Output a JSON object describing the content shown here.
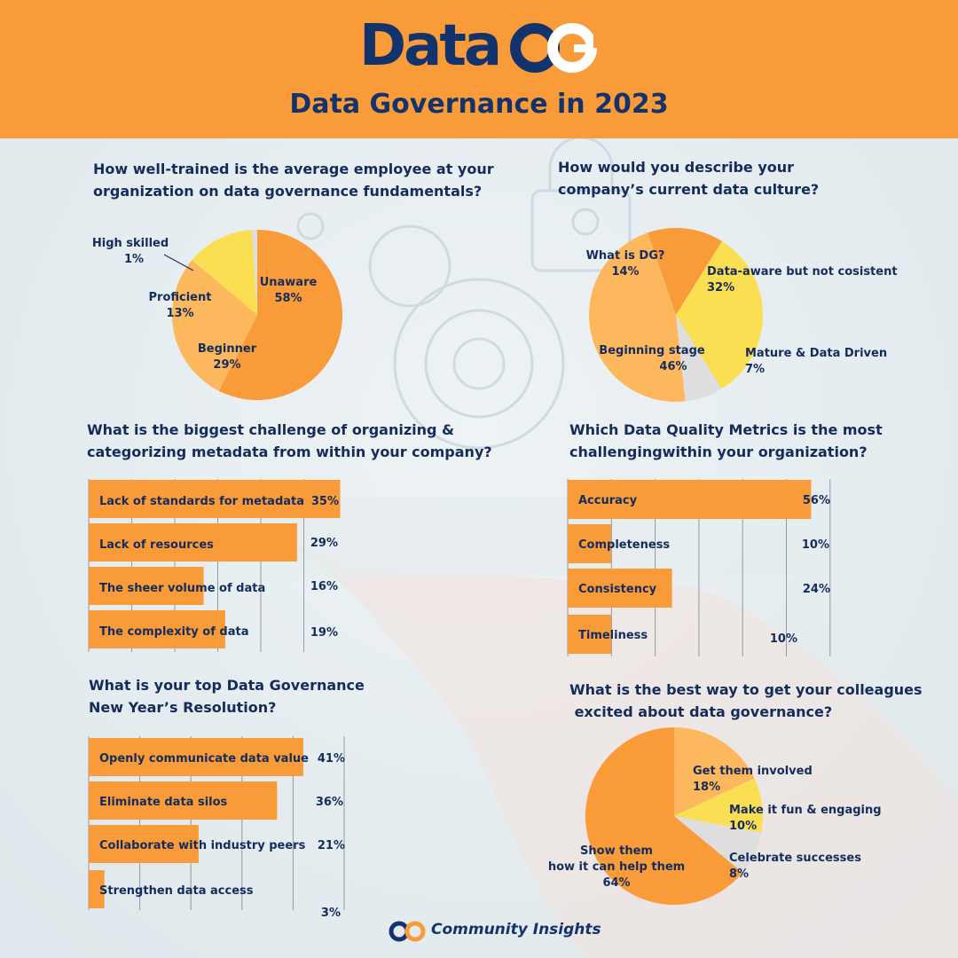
{
  "brand": {
    "logo_text": "Data",
    "logo_mark": "QG",
    "title": "Data Governance in 2023",
    "footer_text": "Community Insights",
    "colors": {
      "orange": "#fa9b3a",
      "light_orange": "#fdb75c",
      "yellow": "#fbdf52",
      "grey": "#dedede",
      "navy": "#12336b"
    }
  },
  "questions": {
    "q1": [
      "How well-trained is the average employee at your",
      "organization on data governance fundamentals?"
    ],
    "q2": [
      "How would you describe your",
      "company’s current data culture?"
    ],
    "q3": [
      "What is the biggest challenge of organizing &",
      "categorizing metadata from within your company?"
    ],
    "q4": [
      "Which Data Quality Metrics is the most",
      "challengingwithin your organization?"
    ],
    "q5": [
      "What is your top Data Governance",
      "New Year’s Resolution?"
    ],
    "q6": [
      "What is the best way to get your colleagues",
      " excited about data governance?"
    ]
  },
  "chart_data": [
    {
      "type": "pie",
      "labels": [
        "Unaware",
        "Beginner",
        "Proficient",
        "High skilled"
      ],
      "values": [
        58,
        29,
        13,
        1
      ],
      "display": [
        "58%",
        "29%",
        "13%",
        "1%"
      ],
      "colors": [
        "#fa9b3a",
        "#fdb75c",
        "#fbdf52",
        "#dedede"
      ]
    },
    {
      "type": "pie",
      "labels": [
        "Data-aware but not cosistent",
        "Mature & Data Driven",
        "Beginning stage",
        "What is DG?"
      ],
      "values": [
        32,
        7,
        46,
        14
      ],
      "display": [
        "32%",
        "7%",
        "46%",
        "14%"
      ],
      "colors": [
        "#fbdf52",
        "#dedede",
        "#fdb75c",
        "#fa9b3a"
      ]
    },
    {
      "type": "bar",
      "categories": [
        "Lack of standards for metadata",
        "Lack of resources",
        "The sheer volume of data",
        "The complexity of data"
      ],
      "values": [
        35,
        29,
        16,
        19
      ],
      "display": [
        "35%",
        "29%",
        "16%",
        "19%"
      ]
    },
    {
      "type": "bar",
      "categories": [
        "Accuracy",
        "Completeness",
        "Consistency",
        "Timeliness"
      ],
      "values": [
        56,
        10,
        24,
        10
      ],
      "display": [
        "56%",
        "10%",
        "24%",
        "10%"
      ]
    },
    {
      "type": "bar",
      "categories": [
        "Openly communicate data value",
        "Eliminate data silos",
        "Collaborate with industry peers",
        "Strengthen data access"
      ],
      "values": [
        41,
        36,
        21,
        3
      ],
      "display": [
        "41%",
        "36%",
        "21%",
        "3%"
      ]
    },
    {
      "type": "pie",
      "labels": [
        "Get them involved",
        "Make it fun & engaging",
        "Celebrate successes",
        "Show them how it can help them"
      ],
      "label_lines": [
        [
          "Get them involved"
        ],
        [
          "Make it fun & engaging"
        ],
        [
          "Celebrate successes"
        ],
        [
          "Show them",
          "how it can help them"
        ]
      ],
      "values": [
        18,
        10,
        8,
        64
      ],
      "display": [
        "18%",
        "10%",
        "8%",
        "64%"
      ],
      "colors": [
        "#fdb75c",
        "#fbdf52",
        "#dedede",
        "#fa9b3a"
      ]
    }
  ]
}
